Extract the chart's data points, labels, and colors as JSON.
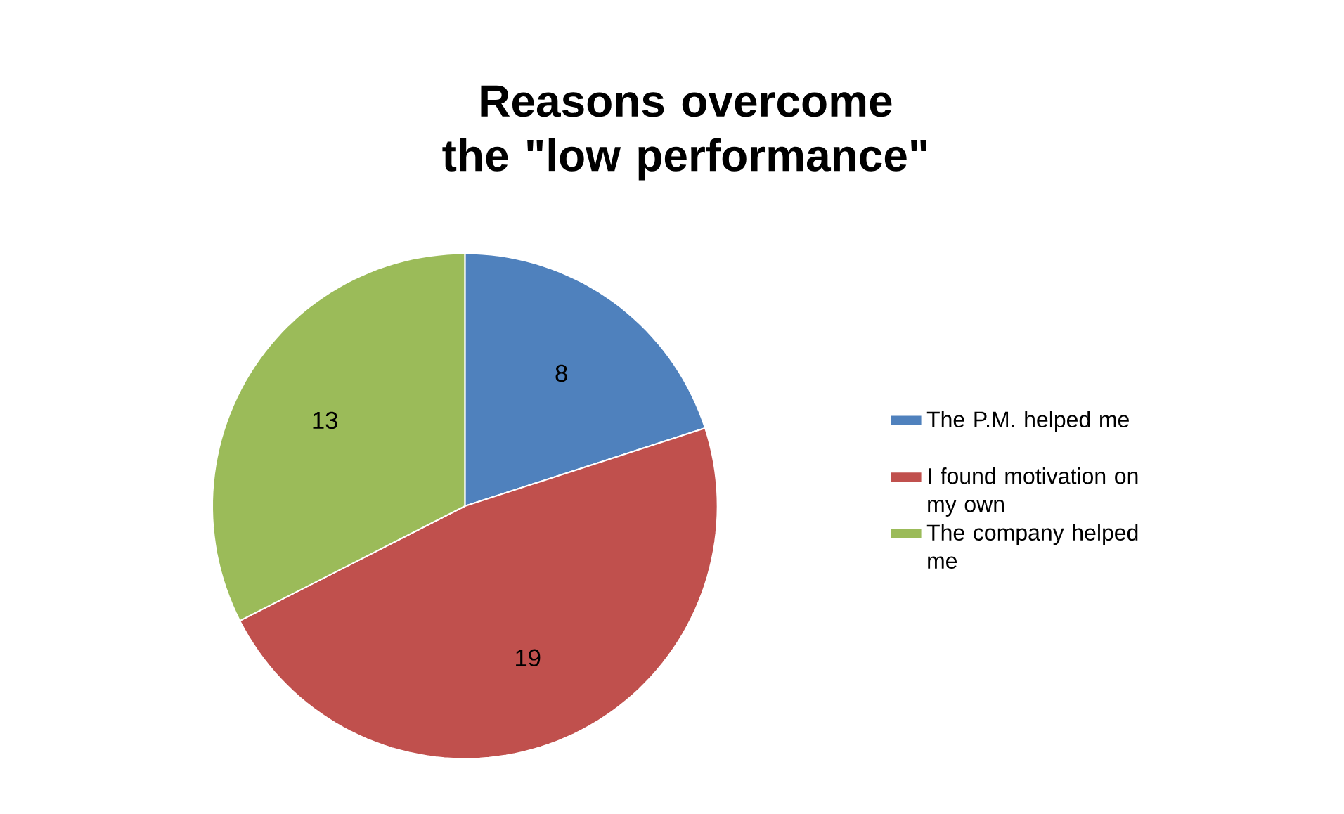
{
  "chart_data": {
    "type": "pie",
    "title": "Reasons overcome the \"low performance\"",
    "categories": [
      "The P.M. helped me",
      "I found motivation on my own",
      "The company helped me"
    ],
    "values": [
      8,
      19,
      13
    ],
    "colors": [
      "#4f81bd",
      "#c0504d",
      "#9bbb59"
    ],
    "data_labels": true,
    "legend": "right"
  }
}
